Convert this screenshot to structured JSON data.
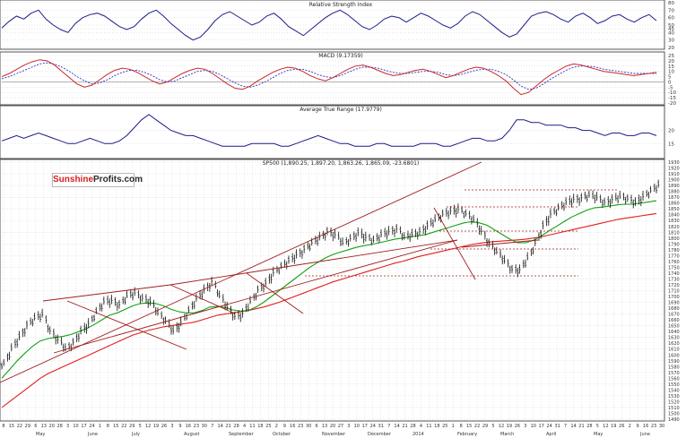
{
  "colors": {
    "price": "#111111",
    "rsi": "#1c1c8c",
    "macd": "#c8282a",
    "signal": "#3030c0",
    "atr": "#1c1c8c",
    "sma50": "#13a013",
    "sma200": "#e01e1e",
    "trend": "#a01e1e",
    "grid": "#cfcfcf"
  },
  "logo": {
    "part1": "Sunshine",
    "part2": "Profits.com"
  },
  "chart_data": [
    {
      "type": "line",
      "title": "Relative Strength Index",
      "ylim": [
        20,
        80
      ],
      "yticks": [
        "80",
        "70",
        "60",
        "50",
        "45",
        "40",
        "30",
        "20"
      ],
      "series": [
        {
          "values": [
            46,
            55,
            62,
            58,
            66,
            70,
            58,
            50,
            44,
            40,
            52,
            60,
            64,
            66,
            62,
            55,
            48,
            44,
            48,
            58,
            66,
            70,
            62,
            52,
            44,
            36,
            30,
            34,
            44,
            56,
            64,
            68,
            62,
            56,
            50,
            54,
            62,
            66,
            58,
            48,
            42,
            36,
            44,
            52,
            60,
            66,
            70,
            64,
            56,
            48,
            44,
            50,
            58,
            62,
            60,
            54,
            60,
            66,
            62,
            56,
            50,
            46,
            52,
            62,
            68,
            64,
            56,
            48,
            40,
            34,
            38,
            50,
            62,
            66,
            68,
            64,
            58,
            54,
            62,
            66,
            60,
            52,
            56,
            62,
            64,
            58,
            54,
            60,
            64,
            56
          ]
        }
      ]
    },
    {
      "type": "line",
      "title": "MACD (9.17359)",
      "ylim": [
        -20,
        25
      ],
      "yticks": [
        "25",
        "20",
        "15",
        "10",
        "5",
        "0",
        "-5",
        "-10",
        "-15",
        "-20"
      ],
      "series": [
        {
          "name": "MACD",
          "values": [
            5,
            8,
            12,
            16,
            19,
            21,
            20,
            16,
            10,
            4,
            -2,
            -5,
            -3,
            2,
            7,
            11,
            13,
            12,
            9,
            5,
            1,
            -2,
            0,
            4,
            8,
            11,
            13,
            12,
            8,
            3,
            -2,
            -6,
            -7,
            -4,
            1,
            5,
            9,
            12,
            14,
            13,
            10,
            6,
            3,
            1,
            4,
            8,
            12,
            15,
            16,
            14,
            11,
            8,
            6,
            7,
            9,
            11,
            12,
            10,
            7,
            4,
            6,
            9,
            12,
            14,
            13,
            10,
            6,
            1,
            -6,
            -12,
            -10,
            -4,
            2,
            7,
            11,
            15,
            17,
            16,
            14,
            12,
            10,
            9,
            8,
            7,
            6,
            7,
            8,
            9
          ]
        },
        {
          "name": "Signal",
          "values": [
            3,
            5,
            8,
            11,
            14,
            17,
            18,
            17,
            14,
            10,
            5,
            1,
            -2,
            -1,
            2,
            6,
            9,
            11,
            11,
            9,
            6,
            2,
            0,
            1,
            4,
            7,
            10,
            11,
            10,
            7,
            3,
            -1,
            -4,
            -5,
            -3,
            0,
            4,
            8,
            11,
            12,
            12,
            10,
            7,
            5,
            4,
            6,
            9,
            12,
            14,
            14,
            13,
            11,
            9,
            8,
            8,
            9,
            10,
            10,
            9,
            7,
            6,
            7,
            9,
            11,
            12,
            12,
            10,
            7,
            2,
            -4,
            -7,
            -6,
            -2,
            3,
            7,
            11,
            14,
            15,
            15,
            14,
            12,
            11,
            10,
            9,
            8,
            8,
            8,
            8
          ]
        }
      ]
    },
    {
      "type": "line",
      "title": "Average True Range (17.9779)",
      "ylim": [
        10,
        28
      ],
      "yticks": [
        "20",
        "15"
      ],
      "series": [
        {
          "values": [
            16,
            17,
            18,
            17,
            18,
            19,
            18,
            17,
            16,
            15,
            15,
            16,
            17,
            16,
            15,
            15,
            16,
            18,
            21,
            24,
            26,
            24,
            22,
            20,
            19,
            18,
            18,
            17,
            16,
            15,
            14,
            14,
            14,
            14,
            15,
            15,
            15,
            15,
            14,
            14,
            15,
            16,
            17,
            18,
            17,
            16,
            15,
            15,
            14,
            14,
            14,
            15,
            15,
            14,
            14,
            14,
            14,
            15,
            15,
            15,
            14,
            14,
            15,
            16,
            17,
            17,
            16,
            16,
            17,
            20,
            24,
            24,
            23,
            23,
            22,
            22,
            22,
            21,
            21,
            20,
            20,
            19,
            18,
            19,
            19,
            18,
            18,
            19,
            19,
            18
          ]
        }
      ]
    },
    {
      "type": "line",
      "title": "SP500 (1,890.25, 1,897.20, 1,863.26, 1,865.09, -23.6801)",
      "ylim": [
        1490,
        1930
      ],
      "yticks": [
        "1930",
        "1920",
        "1910",
        "1900",
        "1890",
        "1880",
        "1870",
        "1860",
        "1850",
        "1840",
        "1830",
        "1820",
        "1810",
        "1800",
        "1790",
        "1780",
        "1770",
        "1760",
        "1750",
        "1740",
        "1730",
        "1720",
        "1710",
        "1700",
        "1690",
        "1680",
        "1670",
        "1660",
        "1650",
        "1640",
        "1630",
        "1620",
        "1610",
        "1600",
        "1590",
        "1580",
        "1570",
        "1560",
        "1550",
        "1540",
        "1530",
        "1520",
        "1510",
        "1500",
        "1490"
      ],
      "xticks": [
        "8",
        "15",
        "22",
        "29",
        "6",
        "13",
        "20",
        "28",
        "3",
        "10",
        "17",
        "24",
        "1",
        "8",
        "15",
        "22",
        "29",
        "5",
        "12",
        "19",
        "26",
        "3",
        "9",
        "16",
        "23",
        "30",
        "7",
        "14",
        "21",
        "28",
        "4",
        "11",
        "18",
        "25",
        "2",
        "9",
        "16",
        "23",
        "30",
        "6",
        "13",
        "20",
        "27",
        "3",
        "10",
        "17",
        "24",
        "31",
        "7",
        "14",
        "21",
        "28",
        "4",
        "11",
        "18",
        "25",
        "1",
        "8",
        "15",
        "22",
        "29",
        "5",
        "12",
        "19",
        "26",
        "3",
        "10",
        "17",
        "24",
        "31",
        "7",
        "14",
        "21",
        "28",
        "5",
        "12",
        "19",
        "26",
        "2",
        "9",
        "16",
        "23",
        "30"
      ],
      "months": [
        "May",
        "June",
        "July",
        "August",
        "September",
        "October",
        "November",
        "December",
        "2014",
        "February",
        "March",
        "April",
        "May",
        "June"
      ],
      "series": [
        {
          "name": "SP500",
          "values": [
            1584,
            1610,
            1630,
            1650,
            1662,
            1668,
            1640,
            1625,
            1609,
            1620,
            1640,
            1652,
            1673,
            1690,
            1692,
            1685,
            1700,
            1705,
            1696,
            1690,
            1670,
            1657,
            1640,
            1655,
            1675,
            1695,
            1710,
            1725,
            1700,
            1680,
            1665,
            1670,
            1690,
            1710,
            1722,
            1740,
            1750,
            1760,
            1770,
            1780,
            1790,
            1800,
            1810,
            1805,
            1790,
            1798,
            1808,
            1800,
            1795,
            1805,
            1810,
            1815,
            1800,
            1805,
            1810,
            1820,
            1830,
            1840,
            1845,
            1848,
            1840,
            1830,
            1810,
            1790,
            1775,
            1760,
            1745,
            1745,
            1765,
            1790,
            1820,
            1840,
            1850,
            1860,
            1865,
            1868,
            1872,
            1868,
            1860,
            1865,
            1870,
            1866,
            1860,
            1870,
            1880,
            1890
          ]
        },
        {
          "name": "50-day MA",
          "values": [
            1560,
            1575,
            1590,
            1603,
            1615,
            1624,
            1628,
            1630,
            1632,
            1635,
            1640,
            1645,
            1652,
            1660,
            1668,
            1672,
            1678,
            1684,
            1688,
            1689,
            1688,
            1684,
            1678,
            1674,
            1672,
            1672,
            1676,
            1682,
            1683,
            1681,
            1677,
            1675,
            1676,
            1682,
            1690,
            1700,
            1710,
            1720,
            1730,
            1740,
            1750,
            1758,
            1766,
            1772,
            1776,
            1780,
            1784,
            1787,
            1789,
            1792,
            1795,
            1798,
            1800,
            1802,
            1804,
            1806,
            1810,
            1814,
            1818,
            1822,
            1826,
            1828,
            1826,
            1822,
            1814,
            1806,
            1798,
            1792,
            1792,
            1796,
            1803,
            1812,
            1820,
            1828,
            1836,
            1842,
            1848,
            1852,
            1853,
            1855,
            1857,
            1858,
            1858,
            1860,
            1862,
            1864
          ]
        },
        {
          "name": "200-day MA",
          "values": [
            1510,
            1520,
            1530,
            1540,
            1550,
            1560,
            1568,
            1574,
            1580,
            1586,
            1592,
            1598,
            1604,
            1610,
            1616,
            1622,
            1628,
            1634,
            1638,
            1642,
            1645,
            1648,
            1650,
            1652,
            1654,
            1656,
            1660,
            1664,
            1668,
            1670,
            1672,
            1674,
            1676,
            1679,
            1682,
            1686,
            1690,
            1695,
            1700,
            1705,
            1710,
            1715,
            1720,
            1725,
            1729,
            1733,
            1737,
            1741,
            1745,
            1749,
            1753,
            1757,
            1760,
            1764,
            1768,
            1771,
            1774,
            1777,
            1780,
            1783,
            1786,
            1789,
            1791,
            1793,
            1794,
            1795,
            1796,
            1797,
            1798,
            1800,
            1802,
            1805,
            1808,
            1811,
            1814,
            1817,
            1820,
            1823,
            1826,
            1829,
            1832,
            1834,
            1836,
            1838,
            1840,
            1842
          ]
        }
      ]
    }
  ]
}
